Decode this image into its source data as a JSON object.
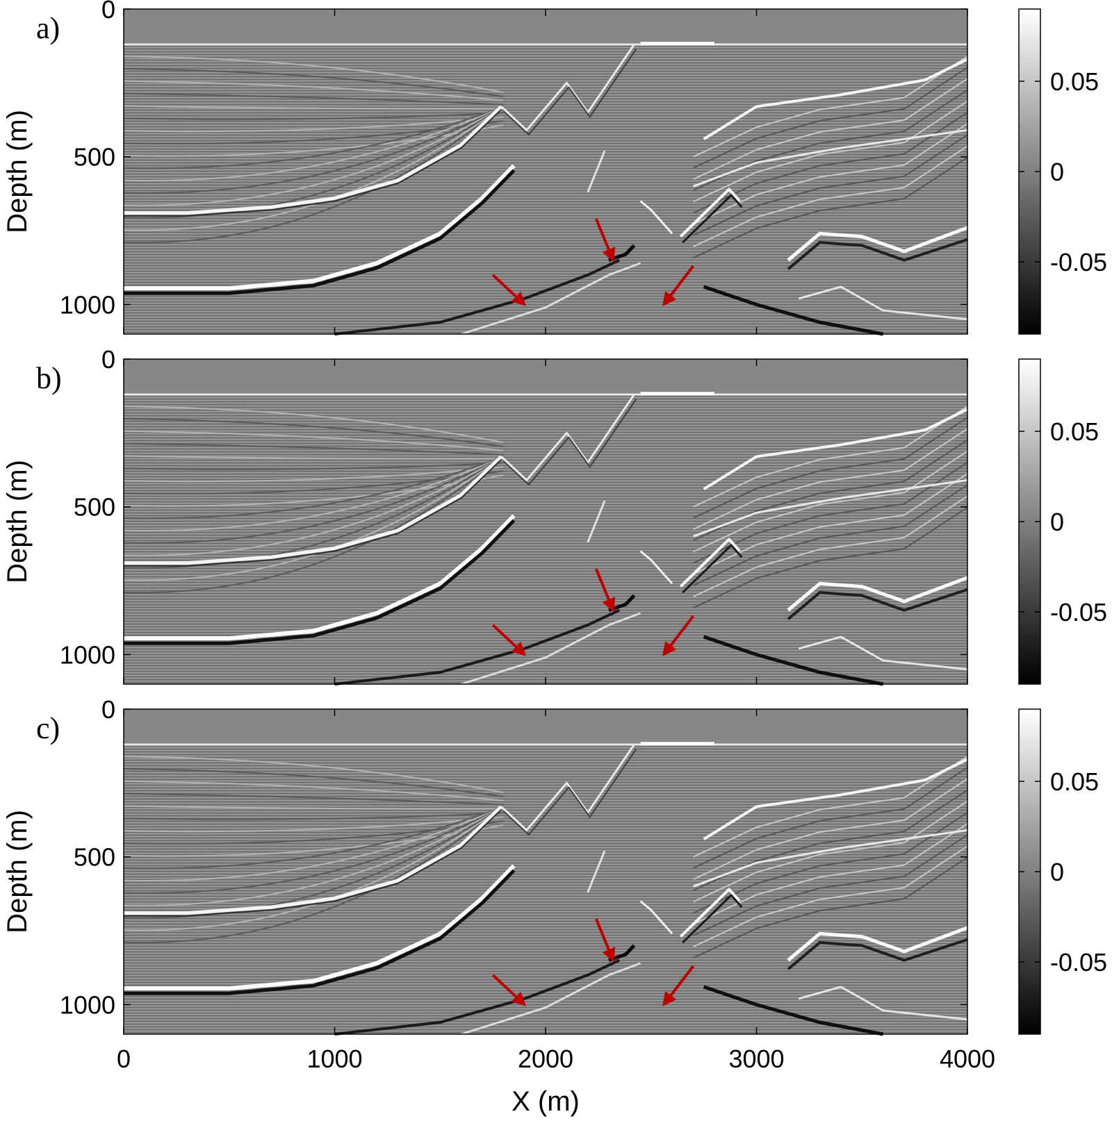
{
  "colors": {
    "arrow": "#c00000",
    "background": "#ffffff",
    "axis": "#000000",
    "colormap": [
      "#000000",
      "#808080",
      "#ffffff"
    ]
  },
  "chart_data": [
    {
      "type": "heatmap",
      "panel_label": "a)",
      "colormap": "gray",
      "xlim": [
        0,
        4000
      ],
      "ylim": [
        1100,
        0
      ],
      "y_reversed": true,
      "x_ticks": [],
      "y_ticks": [
        "0",
        "500",
        "1000"
      ],
      "ylabel": "Depth (m)",
      "xlabel": "",
      "colorbar": {
        "range": [
          -0.09,
          0.09
        ],
        "ticks": [
          "0.05",
          "0",
          "-0.05"
        ],
        "tick_values": [
          0.05,
          0,
          -0.05
        ]
      },
      "arrows": [
        {
          "tip": [
            1900,
            1000
          ],
          "tail": [
            1750,
            900
          ]
        },
        {
          "tip": [
            2320,
            850
          ],
          "tail": [
            2240,
            710
          ]
        },
        {
          "tip": [
            2560,
            1000
          ],
          "tail": [
            2700,
            870
          ]
        }
      ]
    },
    {
      "type": "heatmap",
      "panel_label": "b)",
      "colormap": "gray",
      "xlim": [
        0,
        4000
      ],
      "ylim": [
        1100,
        0
      ],
      "y_reversed": true,
      "x_ticks": [],
      "y_ticks": [
        "0",
        "500",
        "1000"
      ],
      "ylabel": "Depth (m)",
      "xlabel": "",
      "colorbar": {
        "range": [
          -0.09,
          0.09
        ],
        "ticks": [
          "0.05",
          "0",
          "-0.05"
        ],
        "tick_values": [
          0.05,
          0,
          -0.05
        ]
      },
      "arrows": [
        {
          "tip": [
            1900,
            1000
          ],
          "tail": [
            1750,
            900
          ]
        },
        {
          "tip": [
            2320,
            850
          ],
          "tail": [
            2240,
            710
          ]
        },
        {
          "tip": [
            2560,
            1000
          ],
          "tail": [
            2700,
            870
          ]
        }
      ]
    },
    {
      "type": "heatmap",
      "panel_label": "c)",
      "colormap": "gray",
      "xlim": [
        0,
        4000
      ],
      "ylim": [
        1100,
        0
      ],
      "y_reversed": true,
      "x_ticks": [
        "0",
        "1000",
        "2000",
        "3000",
        "4000"
      ],
      "y_ticks": [
        "0",
        "500",
        "1000"
      ],
      "ylabel": "Depth (m)",
      "xlabel": "X  (m)",
      "colorbar": {
        "range": [
          -0.09,
          0.09
        ],
        "ticks": [
          "0.05",
          "0",
          "-0.05"
        ],
        "tick_values": [
          0.05,
          0,
          -0.05
        ]
      },
      "arrows": [
        {
          "tip": [
            1900,
            1000
          ],
          "tail": [
            1750,
            900
          ]
        },
        {
          "tip": [
            2320,
            850
          ],
          "tail": [
            2240,
            710
          ]
        },
        {
          "tip": [
            2560,
            1000
          ],
          "tail": [
            2700,
            870
          ]
        }
      ]
    }
  ]
}
